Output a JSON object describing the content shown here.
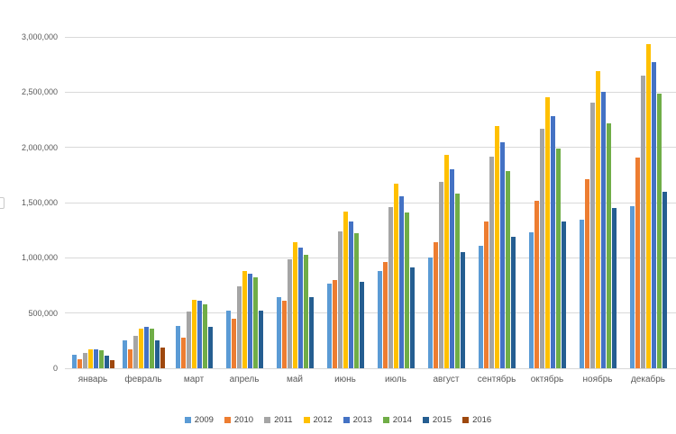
{
  "chart_data": {
    "type": "bar",
    "title": "",
    "xlabel": "",
    "ylabel": "",
    "categories": [
      "январь",
      "февраль",
      "март",
      "апрель",
      "май",
      "июнь",
      "июль",
      "август",
      "сентябрь",
      "октябрь",
      "ноябрь",
      "декабрь"
    ],
    "series": [
      {
        "name": "2009",
        "color": "#5B9BD5",
        "values": [
          120000,
          255000,
          380000,
          525000,
          645000,
          765000,
          880000,
          1000000,
          1110000,
          1235000,
          1345000,
          1465000
        ]
      },
      {
        "name": "2010",
        "color": "#ED7D31",
        "values": [
          80000,
          175000,
          280000,
          450000,
          615000,
          795000,
          965000,
          1140000,
          1325000,
          1520000,
          1710000,
          1910000
        ]
      },
      {
        "name": "2011",
        "color": "#A5A5A5",
        "values": [
          135000,
          290000,
          515000,
          740000,
          985000,
          1240000,
          1460000,
          1690000,
          1915000,
          2165000,
          2405000,
          2650000
        ]
      },
      {
        "name": "2012",
        "color": "#FFC000",
        "values": [
          168000,
          360000,
          617000,
          880000,
          1140000,
          1415000,
          1670000,
          1935000,
          2195000,
          2450000,
          2690000,
          2935000
        ]
      },
      {
        "name": "2013",
        "color": "#4472C4",
        "values": [
          172000,
          372000,
          612000,
          860000,
          1095000,
          1330000,
          1560000,
          1800000,
          2050000,
          2285000,
          2505000,
          2775000
        ]
      },
      {
        "name": "2014",
        "color": "#70AD47",
        "values": [
          160000,
          362000,
          580000,
          820000,
          1030000,
          1225000,
          1410000,
          1580000,
          1785000,
          1990000,
          2220000,
          2490000
        ]
      },
      {
        "name": "2015",
        "color": "#255E91",
        "values": [
          115000,
          250000,
          375000,
          520000,
          640000,
          785000,
          910000,
          1050000,
          1190000,
          1330000,
          1450000,
          1600000
        ]
      },
      {
        "name": "2016",
        "color": "#9E480E",
        "values": [
          70000,
          190000,
          null,
          null,
          null,
          null,
          null,
          null,
          null,
          null,
          null,
          null
        ]
      }
    ],
    "ylim": [
      0,
      3000000
    ],
    "y_step": 500000,
    "y_tick_labels": [
      "0",
      "500,000",
      "1,000,000",
      "1,500,000",
      "2,000,000",
      "2,500,000",
      "3,000,000"
    ],
    "grid": "horizontal",
    "legend_position": "bottom"
  },
  "colors": {
    "background": "#ffffff",
    "gridline": "#d9d9d9",
    "axis_text": "#595959",
    "legend_text": "#404040"
  }
}
